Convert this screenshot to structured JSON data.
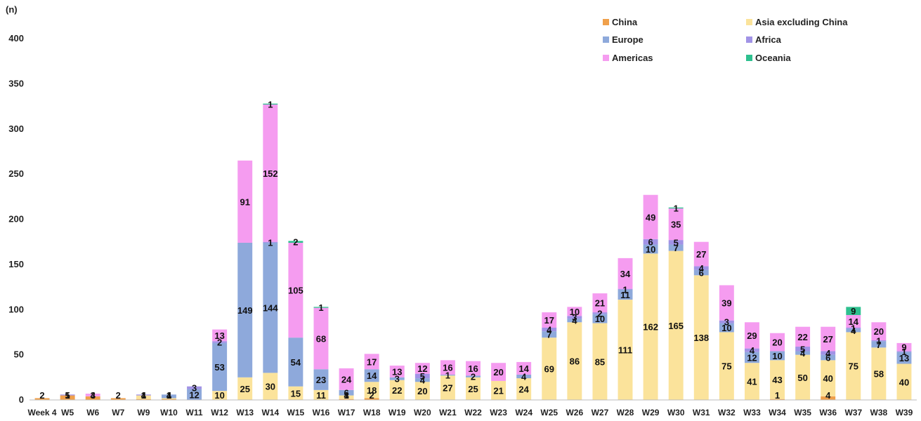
{
  "chart_data": {
    "type": "bar",
    "stacked": true,
    "ylabel": "(n)",
    "ylim": [
      0,
      400
    ],
    "yticks": [
      0,
      50,
      100,
      150,
      200,
      250,
      300,
      350,
      400
    ],
    "grid": false,
    "legend_position": "top-right",
    "categories": [
      "Week 4",
      "W5",
      "W6",
      "W7",
      "W9",
      "W10",
      "W11",
      "W12",
      "W13",
      "W14",
      "W15",
      "W16",
      "W17",
      "W18",
      "W19",
      "W20",
      "W21",
      "W22",
      "W23",
      "W24",
      "W25",
      "W26",
      "W27",
      "W28",
      "W29",
      "W30",
      "W31",
      "W32",
      "W33",
      "W34",
      "W35",
      "W36",
      "W37",
      "W38",
      "W39"
    ],
    "series": [
      {
        "name": "China",
        "color": "#F0A04B",
        "values": [
          2,
          5,
          4,
          2,
          1,
          1,
          0,
          0,
          0,
          0,
          0,
          0,
          1,
          2,
          0,
          0,
          0,
          0,
          0,
          0,
          0,
          0,
          0,
          0,
          0,
          0,
          0,
          0,
          0,
          1,
          0,
          4,
          0,
          0,
          0
        ]
      },
      {
        "name": "Asia excluding China",
        "color": "#FBE39B",
        "values": [
          0,
          0,
          0,
          0,
          4,
          1,
          0,
          10,
          25,
          30,
          15,
          11,
          4,
          18,
          22,
          20,
          27,
          25,
          21,
          24,
          69,
          86,
          85,
          111,
          162,
          165,
          138,
          75,
          41,
          43,
          50,
          40,
          75,
          58,
          40
        ]
      },
      {
        "name": "Europe",
        "color": "#8EA9DB",
        "values": [
          0,
          0,
          0,
          0,
          0,
          4,
          12,
          53,
          149,
          144,
          54,
          23,
          6,
          14,
          3,
          4,
          1,
          2,
          0,
          4,
          7,
          4,
          10,
          11,
          10,
          7,
          6,
          10,
          12,
          10,
          4,
          6,
          4,
          7,
          13
        ]
      },
      {
        "name": "Africa",
        "color": "#A193E6",
        "values": [
          0,
          1,
          0,
          0,
          1,
          0,
          3,
          2,
          0,
          1,
          0,
          0,
          0,
          0,
          0,
          5,
          0,
          0,
          0,
          0,
          4,
          3,
          2,
          1,
          6,
          5,
          4,
          3,
          4,
          0,
          5,
          4,
          1,
          1,
          1
        ]
      },
      {
        "name": "Americas",
        "color": "#F59CF0",
        "values": [
          0,
          0,
          3,
          0,
          0,
          0,
          0,
          13,
          91,
          152,
          105,
          68,
          24,
          17,
          13,
          12,
          16,
          16,
          20,
          14,
          17,
          10,
          21,
          34,
          49,
          35,
          27,
          39,
          29,
          20,
          22,
          27,
          14,
          20,
          9
        ]
      },
      {
        "name": "Oceania",
        "color": "#2EC08F",
        "values": [
          0,
          0,
          0,
          0,
          0,
          0,
          0,
          0,
          0,
          1,
          2,
          1,
          0,
          0,
          0,
          0,
          0,
          0,
          0,
          0,
          0,
          0,
          0,
          0,
          0,
          1,
          0,
          0,
          0,
          0,
          0,
          0,
          9,
          0,
          0
        ]
      }
    ]
  }
}
